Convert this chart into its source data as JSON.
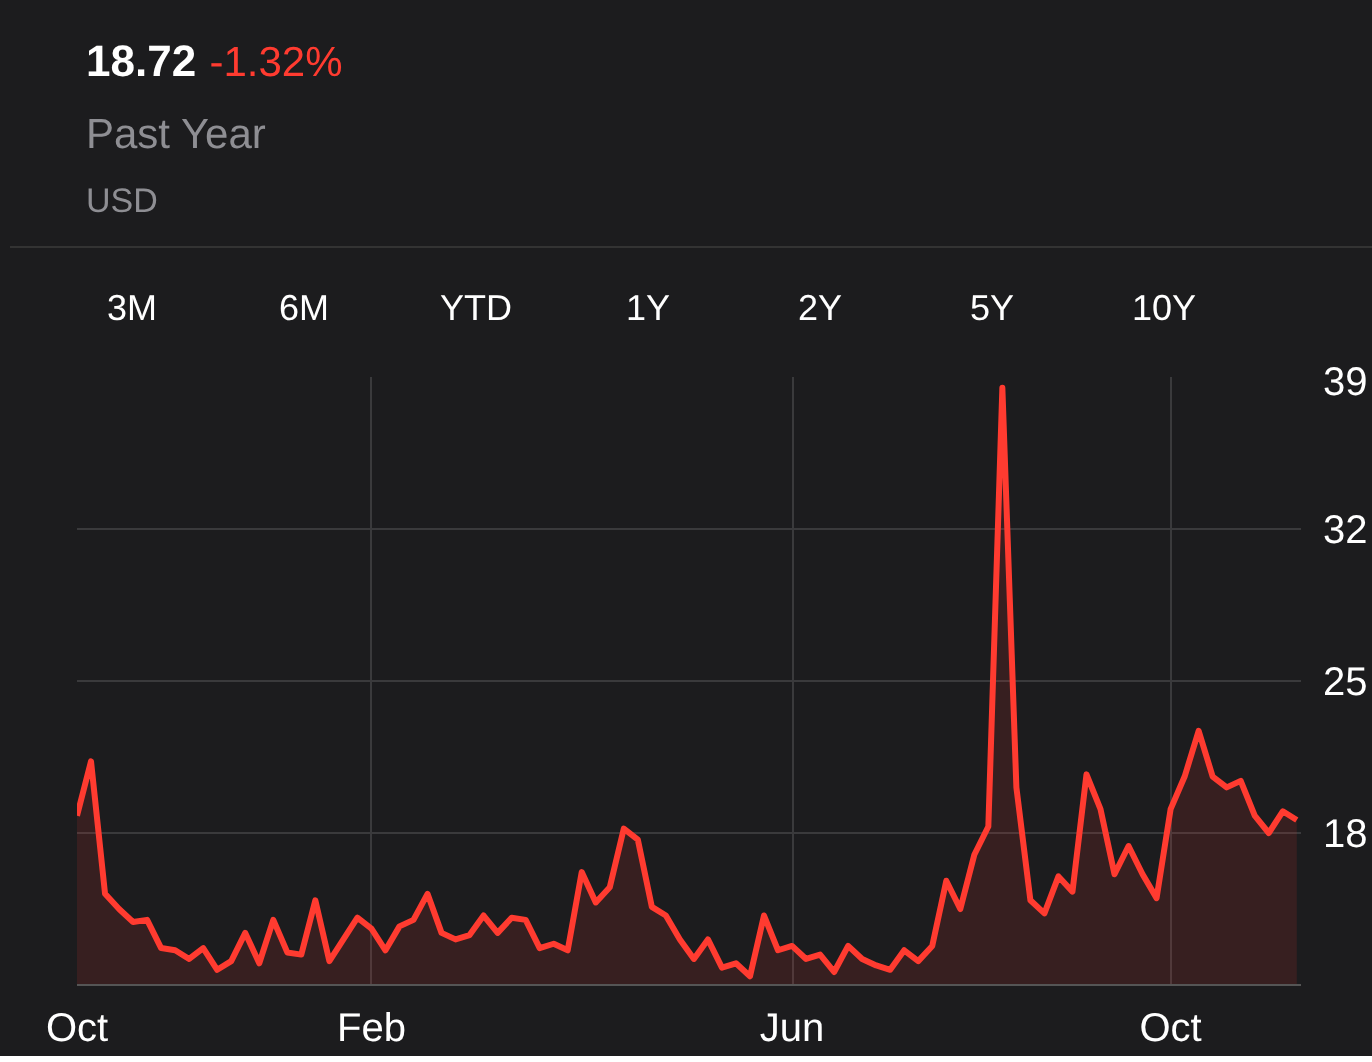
{
  "chart_data": {
    "type": "area",
    "title": "18.72",
    "subtitle": "-1.32%",
    "annotations": [
      "Past Year",
      "USD",
      "3M",
      "6M",
      "YTD",
      "1Y",
      "2Y",
      "5Y",
      "10Y"
    ],
    "categories": [
      "Oct",
      null,
      null,
      null,
      null,
      null,
      null,
      null,
      null,
      null,
      null,
      null,
      null,
      null,
      null,
      null,
      null,
      null,
      null,
      null,
      null,
      "Feb",
      null,
      null,
      null,
      null,
      null,
      null,
      null,
      null,
      null,
      null,
      null,
      null,
      null,
      null,
      null,
      null,
      null,
      null,
      null,
      null,
      null,
      null,
      null,
      null,
      null,
      null,
      null,
      null,
      null,
      "Jun",
      null,
      null,
      null,
      null,
      null,
      null,
      null,
      null,
      null,
      null,
      null,
      null,
      null,
      null,
      null,
      null,
      null,
      null,
      null,
      null,
      null,
      null,
      null,
      null,
      null,
      null,
      "Oct",
      null,
      null,
      null,
      null,
      null,
      null,
      null,
      null,
      null
    ],
    "series": [
      {
        "color": "#ff3b30",
        "values": [
          18.8,
          21.3,
          15.2,
          14.5,
          13.9,
          14.0,
          12.7,
          12.6,
          12.2,
          12.7,
          11.7,
          12.1,
          13.4,
          12.0,
          14.0,
          12.5,
          12.4,
          14.9,
          12.1,
          13.1,
          14.1,
          13.6,
          12.6,
          13.7,
          14.0,
          15.2,
          13.4,
          13.1,
          13.3,
          14.2,
          13.4,
          14.1,
          14.0,
          12.7,
          12.9,
          12.6,
          16.2,
          14.8,
          15.5,
          18.2,
          17.7,
          14.6,
          14.2,
          13.1,
          12.2,
          13.1,
          11.8,
          12.0,
          11.4,
          14.2,
          12.6,
          12.8,
          12.2,
          12.4,
          11.6,
          12.8,
          12.2,
          11.9,
          11.7,
          12.6,
          12.1,
          12.8,
          15.8,
          14.5,
          17.0,
          18.3,
          38.5,
          20.1,
          14.9,
          14.3,
          16.0,
          15.3,
          20.7,
          19.1,
          16.1,
          17.4,
          16.1,
          15.0,
          19.1,
          20.6,
          22.7,
          20.6,
          20.1,
          20.4,
          18.8,
          18.0,
          19.0,
          18.6
        ]
      }
    ],
    "ylim": [
      11,
      39
    ],
    "yticks": [
      18,
      25,
      32,
      39
    ],
    "grid": true
  }
}
